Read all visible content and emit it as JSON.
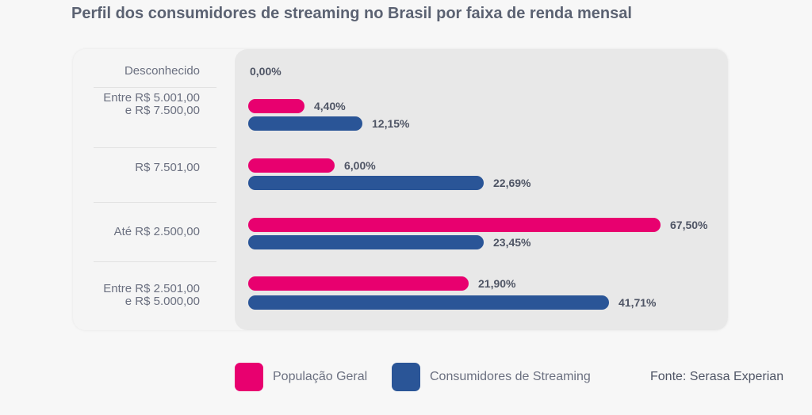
{
  "chart_data": {
    "type": "bar",
    "orientation": "horizontal",
    "title": "Perfil dos consumidores de streaming no Brasil por faixa de renda mensal",
    "categories": [
      "Desconhecido",
      "Entre R$ 5.001,00 e R$ 7.500,00",
      "R$ 7.501,00",
      "Até R$ 2.500,00",
      "Entre R$ 2.501,00 e R$ 5.000,00"
    ],
    "category_lines": [
      [
        "Desconhecido"
      ],
      [
        "Entre R$ 5.001,00",
        "e R$ 7.500,00"
      ],
      [
        "R$ 7.501,00"
      ],
      [
        "Até R$ 2.500,00"
      ],
      [
        "Entre R$ 2.501,00",
        "e R$ 5.000,00"
      ]
    ],
    "series": [
      {
        "name": "População Geral",
        "color": "#e8006f",
        "values": [
          null,
          4.4,
          6.0,
          67.5,
          21.9
        ],
        "labels": [
          null,
          "4,40%",
          "6,00%",
          "67,50%",
          "21,90%"
        ]
      },
      {
        "name": "Consumidores de Streaming",
        "color": "#2a5597",
        "values": [
          0.0,
          12.15,
          22.69,
          23.45,
          41.71
        ],
        "labels": [
          "0,00%",
          "12,15%",
          "22,69%",
          "23,45%",
          "41,71%"
        ]
      }
    ],
    "legend_position": "bottom",
    "grid": false
  },
  "source": "Fonte: Serasa Experian"
}
